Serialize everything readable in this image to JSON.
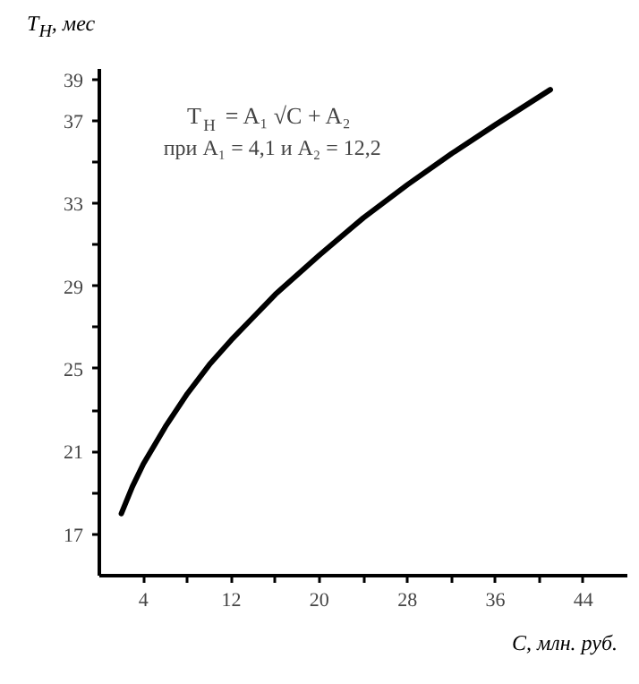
{
  "chart_data": {
    "type": "line",
    "xlabel": "C, млн. руб.",
    "ylabel": "T$_{Н}$, мес",
    "annotations": [
      "T$_{Н}$ = A₁ √C + A₂",
      "при A₁ = 4,1 и A₂ = 12,2"
    ],
    "x": [
      2,
      3,
      4,
      6,
      8,
      10,
      12,
      14,
      16,
      20,
      24,
      28,
      32,
      36,
      41
    ],
    "series": [
      {
        "color": "#000000",
        "values": [
          18.0,
          19.3,
          20.4,
          22.2,
          23.8,
          25.2,
          26.4,
          27.5,
          28.6,
          30.5,
          32.3,
          33.9,
          35.4,
          36.8,
          38.5
        ]
      }
    ],
    "xlim": [
      0,
      48
    ],
    "ylim": [
      15,
      39.5
    ],
    "xticks": [
      4,
      {
        "value": 8,
        "label": null
      },
      12,
      {
        "value": 16,
        "label": null
      },
      20,
      {
        "value": 24,
        "label": null
      },
      28,
      {
        "value": 32,
        "label": null
      },
      36,
      {
        "value": 40,
        "label": null
      },
      44
    ],
    "yticks": [
      17,
      {
        "value": 19,
        "label": null
      },
      21,
      {
        "value": 23,
        "label": null
      },
      25,
      {
        "value": 27,
        "label": null
      },
      29,
      {
        "value": 31,
        "label": null
      },
      33,
      {
        "value": 35,
        "label": null
      },
      37,
      39
    ],
    "grid": false,
    "marker": "none",
    "line_style": "solid"
  }
}
